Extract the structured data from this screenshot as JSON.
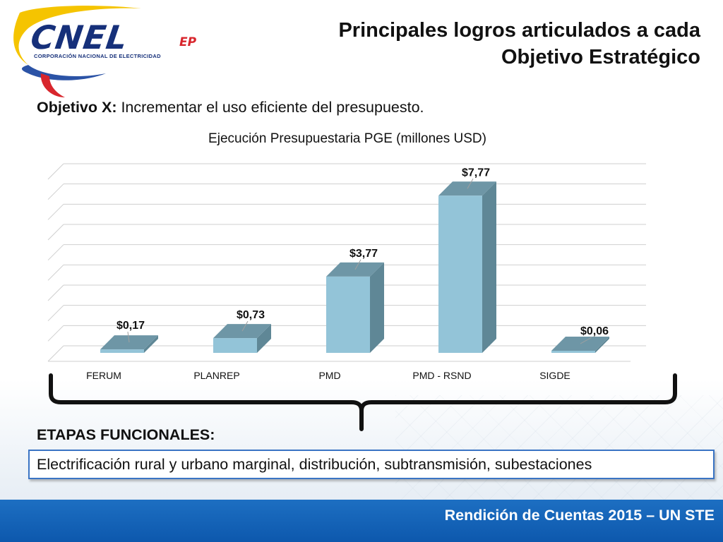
{
  "logo": {
    "name": "CNEL",
    "suffix": "EP",
    "subtitle": "CORPORACIÓN NACIONAL DE ELECTRICIDAD"
  },
  "header": {
    "title_line1": "Principales logros articulados a cada",
    "title_line2": "Objetivo Estratégico"
  },
  "objective": {
    "label": "Objetivo X:",
    "text": " Incrementar el uso eficiente del presupuesto."
  },
  "chart_data": {
    "type": "bar",
    "title": "Ejecución Presupuestaria PGE (millones USD)",
    "categories": [
      "FERUM",
      "PLANREP",
      "PMD",
      "PMD - RSND",
      "SIGDE"
    ],
    "values": [
      0.17,
      0.73,
      3.77,
      7.77,
      0.06
    ],
    "data_labels": [
      "$0,17",
      "$0,73",
      "$3,77",
      "$7,77",
      "$0,06"
    ],
    "ylim": [
      0,
      9
    ],
    "grid": true,
    "legend": "none",
    "bar_color": "#93c4d8"
  },
  "etapas": {
    "label": "ETAPAS FUNCIONALES:",
    "text": "Electrificación rural y urbano marginal, distribución, subtransmisión, subestaciones"
  },
  "footer": {
    "text": "Rendición de Cuentas 2015 – UN STE"
  },
  "colors": {
    "logo_blue": "#16307a",
    "logo_red": "#d8262d",
    "footer_blue": "#1d6fc2",
    "box_border": "#3a74c4"
  }
}
